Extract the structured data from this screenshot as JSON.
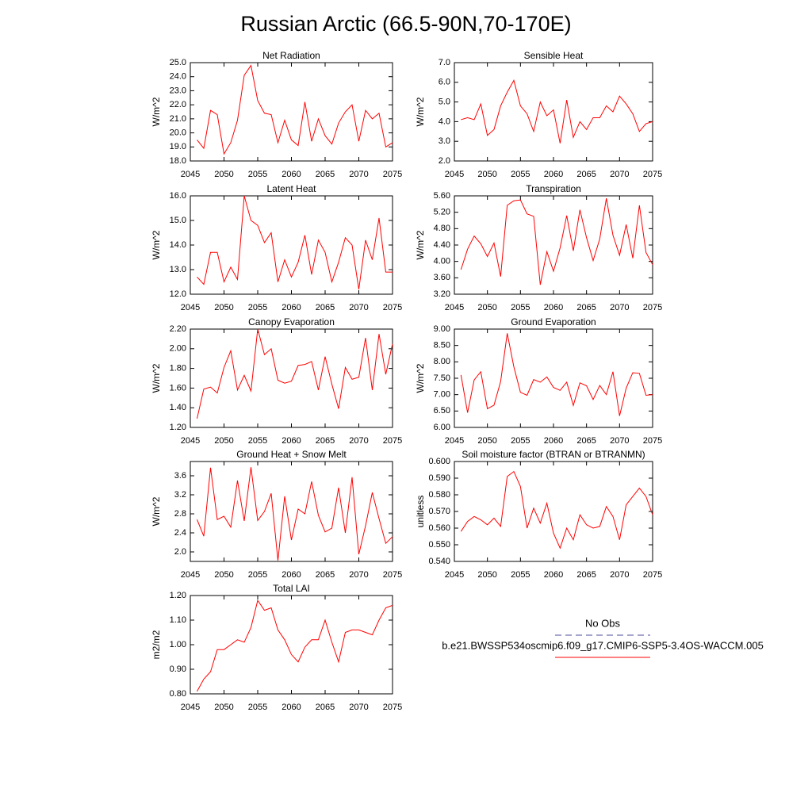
{
  "title": "Russian Arctic (66.5-90N,70-170E)",
  "legend": [
    {
      "name": "No Obs",
      "color": "#4b4b9b",
      "dash": true
    },
    {
      "name": "b.e21.BWSSP534oscmip6.f09_g17.CMIP6-SSP5-3.4OS-WACCM.005",
      "color": "#ff0000"
    }
  ],
  "chart_data": [
    {
      "type": "line",
      "title": "Net Radiation",
      "ylabel": "W/m^2",
      "color": "#ff0000",
      "x": [
        2046,
        2047,
        2048,
        2049,
        2050,
        2051,
        2052,
        2053,
        2054,
        2055,
        2056,
        2057,
        2058,
        2059,
        2060,
        2061,
        2062,
        2063,
        2064,
        2065,
        2066,
        2067,
        2068,
        2069,
        2070,
        2071,
        2072,
        2073,
        2074,
        2075
      ],
      "values": [
        19.5,
        18.9,
        21.6,
        21.3,
        18.5,
        19.3,
        20.9,
        24.1,
        24.8,
        22.3,
        21.4,
        21.3,
        19.3,
        20.9,
        19.5,
        19.1,
        22.2,
        19.4,
        21.0,
        19.8,
        19.2,
        20.7,
        21.5,
        22.0,
        19.4,
        21.6,
        21.0,
        21.4,
        19.0,
        19.3
      ],
      "xlim": [
        2045,
        2075
      ],
      "xticks": [
        2045,
        2050,
        2055,
        2060,
        2065,
        2070,
        2075
      ],
      "ylim": [
        18,
        25
      ],
      "yticks": [
        {
          "value": 18,
          "label": "18.0"
        },
        {
          "value": 19,
          "label": "19.0"
        },
        {
          "value": 20,
          "label": "20.0"
        },
        {
          "value": 21,
          "label": "21.0"
        },
        {
          "value": 22,
          "label": "22.0"
        },
        {
          "value": 23,
          "label": "23.0"
        },
        {
          "value": 24,
          "label": "24.0"
        },
        {
          "value": 25,
          "label": "25.0"
        }
      ]
    },
    {
      "type": "line",
      "title": "Sensible Heat",
      "ylabel": "W/m^2",
      "color": "#ff0000",
      "x": [
        2046,
        2047,
        2048,
        2049,
        2050,
        2051,
        2052,
        2053,
        2054,
        2055,
        2056,
        2057,
        2058,
        2059,
        2060,
        2061,
        2062,
        2063,
        2064,
        2065,
        2066,
        2067,
        2068,
        2069,
        2070,
        2071,
        2072,
        2073,
        2074,
        2075
      ],
      "values": [
        4.1,
        4.2,
        4.1,
        4.9,
        3.3,
        3.6,
        4.8,
        5.5,
        6.1,
        4.8,
        4.4,
        3.5,
        5.0,
        4.3,
        4.6,
        2.9,
        5.1,
        3.2,
        4.0,
        3.6,
        4.2,
        4.2,
        4.8,
        4.5,
        5.3,
        4.9,
        4.4,
        3.5,
        3.9,
        4.0
      ],
      "xlim": [
        2045,
        2075
      ],
      "xticks": [
        2045,
        2050,
        2055,
        2060,
        2065,
        2070,
        2075
      ],
      "ylim": [
        2,
        7
      ],
      "yticks": [
        {
          "value": 2,
          "label": "2.0"
        },
        {
          "value": 3,
          "label": "3.0"
        },
        {
          "value": 4,
          "label": "4.0"
        },
        {
          "value": 5,
          "label": "5.0"
        },
        {
          "value": 6,
          "label": "6.0"
        },
        {
          "value": 7,
          "label": "7.0"
        }
      ]
    },
    {
      "type": "line",
      "title": "Latent Heat",
      "ylabel": "W/m^2",
      "color": "#ff0000",
      "x": [
        2046,
        2047,
        2048,
        2049,
        2050,
        2051,
        2052,
        2053,
        2054,
        2055,
        2056,
        2057,
        2058,
        2059,
        2060,
        2061,
        2062,
        2063,
        2064,
        2065,
        2066,
        2067,
        2068,
        2069,
        2070,
        2071,
        2072,
        2073,
        2074,
        2075
      ],
      "values": [
        12.7,
        12.4,
        13.7,
        13.7,
        12.5,
        13.1,
        12.6,
        16.0,
        15.0,
        14.8,
        14.1,
        14.5,
        12.5,
        13.4,
        12.7,
        13.3,
        14.4,
        12.8,
        14.2,
        13.7,
        12.5,
        13.3,
        14.3,
        14.0,
        12.2,
        14.2,
        13.4,
        15.1,
        12.9,
        12.9
      ],
      "xlim": [
        2045,
        2075
      ],
      "xticks": [
        2045,
        2050,
        2055,
        2060,
        2065,
        2070,
        2075
      ],
      "ylim": [
        12,
        16
      ],
      "yticks": [
        {
          "value": 12,
          "label": "12.0"
        },
        {
          "value": 13,
          "label": "13.0"
        },
        {
          "value": 14,
          "label": "14.0"
        },
        {
          "value": 15,
          "label": "15.0"
        },
        {
          "value": 16,
          "label": "16.0"
        }
      ]
    },
    {
      "type": "line",
      "title": "Transpiration",
      "ylabel": "W/m^2",
      "color": "#ff0000",
      "x": [
        2046,
        2047,
        2048,
        2049,
        2050,
        2051,
        2052,
        2053,
        2054,
        2055,
        2056,
        2057,
        2058,
        2059,
        2060,
        2061,
        2062,
        2063,
        2064,
        2065,
        2066,
        2067,
        2068,
        2069,
        2070,
        2071,
        2072,
        2073,
        2074,
        2075
      ],
      "values": [
        3.8,
        4.3,
        4.62,
        4.43,
        4.12,
        4.45,
        3.63,
        5.37,
        5.48,
        5.5,
        5.16,
        5.1,
        3.43,
        4.24,
        3.76,
        4.33,
        5.12,
        4.26,
        5.26,
        4.58,
        4.02,
        4.55,
        5.54,
        4.64,
        4.15,
        4.9,
        4.08,
        5.37,
        4.22,
        3.92
      ],
      "xlim": [
        2045,
        2075
      ],
      "xticks": [
        2045,
        2050,
        2055,
        2060,
        2065,
        2070,
        2075
      ],
      "ylim": [
        3.2,
        5.6
      ],
      "yticks": [
        {
          "value": 3.2,
          "label": "3.20"
        },
        {
          "value": 3.6,
          "label": "3.60"
        },
        {
          "value": 4,
          "label": "4.00"
        },
        {
          "value": 4.4,
          "label": "4.40"
        },
        {
          "value": 4.8,
          "label": "4.80"
        },
        {
          "value": 5.2,
          "label": "5.20"
        },
        {
          "value": 5.6,
          "label": "5.60"
        }
      ]
    },
    {
      "type": "line",
      "title": "Canopy Evaporation",
      "ylabel": "W/m^2",
      "color": "#ff0000",
      "x": [
        2046,
        2047,
        2048,
        2049,
        2050,
        2051,
        2052,
        2053,
        2054,
        2055,
        2056,
        2057,
        2058,
        2059,
        2060,
        2061,
        2062,
        2063,
        2064,
        2065,
        2066,
        2067,
        2068,
        2069,
        2070,
        2071,
        2072,
        2073,
        2074,
        2075
      ],
      "values": [
        1.29,
        1.59,
        1.61,
        1.55,
        1.81,
        1.98,
        1.58,
        1.73,
        1.57,
        2.2,
        1.94,
        2.0,
        1.68,
        1.65,
        1.67,
        1.83,
        1.84,
        1.87,
        1.58,
        1.92,
        1.64,
        1.39,
        1.81,
        1.69,
        1.71,
        2.11,
        1.58,
        2.15,
        1.74,
        2.05
      ],
      "xlim": [
        2045,
        2075
      ],
      "xticks": [
        2045,
        2050,
        2055,
        2060,
        2065,
        2070,
        2075
      ],
      "ylim": [
        1.2,
        2.2
      ],
      "yticks": [
        {
          "value": 1.2,
          "label": "1.20"
        },
        {
          "value": 1.4,
          "label": "1.40"
        },
        {
          "value": 1.6,
          "label": "1.60"
        },
        {
          "value": 1.8,
          "label": "1.80"
        },
        {
          "value": 2,
          "label": "2.00"
        },
        {
          "value": 2.2,
          "label": "2.20"
        }
      ]
    },
    {
      "type": "line",
      "title": "Ground Evaporation",
      "ylabel": "W/m^2",
      "color": "#ff0000",
      "x": [
        2046,
        2047,
        2048,
        2049,
        2050,
        2051,
        2052,
        2053,
        2054,
        2055,
        2056,
        2057,
        2058,
        2059,
        2060,
        2061,
        2062,
        2063,
        2064,
        2065,
        2066,
        2067,
        2068,
        2069,
        2070,
        2071,
        2072,
        2073,
        2074,
        2075
      ],
      "values": [
        7.6,
        6.45,
        7.45,
        7.7,
        6.57,
        6.68,
        7.4,
        8.87,
        7.85,
        7.07,
        6.98,
        7.46,
        7.38,
        7.54,
        7.22,
        7.13,
        7.38,
        6.67,
        7.36,
        7.27,
        6.85,
        7.28,
        7.0,
        7.7,
        6.35,
        7.2,
        7.67,
        7.65,
        6.98,
        7.0
      ],
      "xlim": [
        2045,
        2075
      ],
      "xticks": [
        2045,
        2050,
        2055,
        2060,
        2065,
        2070,
        2075
      ],
      "ylim": [
        6,
        9
      ],
      "yticks": [
        {
          "value": 6,
          "label": "6.00"
        },
        {
          "value": 6.5,
          "label": "6.50"
        },
        {
          "value": 7,
          "label": "7.00"
        },
        {
          "value": 7.5,
          "label": "7.50"
        },
        {
          "value": 8,
          "label": "8.00"
        },
        {
          "value": 8.5,
          "label": "8.50"
        },
        {
          "value": 9,
          "label": "9.00"
        }
      ]
    },
    {
      "type": "line",
      "title": "Ground Heat + Snow Melt",
      "ylabel": "W/m^2",
      "color": "#ff0000",
      "x": [
        2046,
        2047,
        2048,
        2049,
        2050,
        2051,
        2052,
        2053,
        2054,
        2055,
        2056,
        2057,
        2058,
        2059,
        2060,
        2061,
        2062,
        2063,
        2064,
        2065,
        2066,
        2067,
        2068,
        2069,
        2070,
        2071,
        2072,
        2073,
        2074,
        2075
      ],
      "values": [
        2.68,
        2.33,
        3.77,
        2.68,
        2.75,
        2.52,
        3.5,
        2.65,
        3.78,
        2.66,
        2.85,
        3.23,
        1.82,
        3.17,
        2.25,
        2.9,
        2.8,
        3.48,
        2.77,
        2.42,
        2.5,
        3.35,
        2.4,
        3.57,
        1.95,
        2.55,
        3.25,
        2.7,
        2.18,
        2.32
      ],
      "xlim": [
        2045,
        2075
      ],
      "xticks": [
        2045,
        2050,
        2055,
        2060,
        2065,
        2070,
        2075
      ],
      "ylim": [
        1.8,
        3.9
      ],
      "yticks": [
        {
          "value": 2,
          "label": "2.0"
        },
        2.4,
        2.8,
        3.2,
        3.6
      ]
    },
    {
      "type": "line",
      "title": "Soil moisture factor (BTRAN or BTRANMN)",
      "ylabel": "unitless",
      "color": "#ff0000",
      "x": [
        2046,
        2047,
        2048,
        2049,
        2050,
        2051,
        2052,
        2053,
        2054,
        2055,
        2056,
        2057,
        2058,
        2059,
        2060,
        2061,
        2062,
        2063,
        2064,
        2065,
        2066,
        2067,
        2068,
        2069,
        2070,
        2071,
        2072,
        2073,
        2074,
        2075
      ],
      "values": [
        0.558,
        0.564,
        0.567,
        0.565,
        0.562,
        0.566,
        0.561,
        0.591,
        0.594,
        0.585,
        0.56,
        0.572,
        0.563,
        0.575,
        0.557,
        0.548,
        0.56,
        0.553,
        0.568,
        0.562,
        0.56,
        0.561,
        0.573,
        0.567,
        0.553,
        0.574,
        0.579,
        0.584,
        0.579,
        0.568
      ],
      "xlim": [
        2045,
        2075
      ],
      "xticks": [
        2045,
        2050,
        2055,
        2060,
        2065,
        2070,
        2075
      ],
      "ylim": [
        0.54,
        0.6
      ],
      "yticks": [
        {
          "value": 0.54,
          "label": "0.540"
        },
        {
          "value": 0.55,
          "label": "0.550"
        },
        {
          "value": 0.56,
          "label": "0.560"
        },
        {
          "value": 0.57,
          "label": "0.570"
        },
        {
          "value": 0.58,
          "label": "0.580"
        },
        {
          "value": 0.59,
          "label": "0.590"
        },
        {
          "value": 0.6,
          "label": "0.600"
        }
      ]
    },
    {
      "type": "line",
      "title": "Total LAI",
      "ylabel": "m2/m2",
      "color": "#ff0000",
      "x": [
        2046,
        2047,
        2048,
        2049,
        2050,
        2051,
        2052,
        2053,
        2054,
        2055,
        2056,
        2057,
        2058,
        2059,
        2060,
        2061,
        2062,
        2063,
        2064,
        2065,
        2066,
        2067,
        2068,
        2069,
        2070,
        2071,
        2072,
        2073,
        2074,
        2075
      ],
      "values": [
        0.81,
        0.86,
        0.89,
        0.98,
        0.98,
        1.0,
        1.02,
        1.01,
        1.07,
        1.18,
        1.14,
        1.15,
        1.06,
        1.02,
        0.96,
        0.93,
        0.99,
        1.02,
        1.02,
        1.1,
        1.01,
        0.93,
        1.05,
        1.06,
        1.06,
        1.05,
        1.04,
        1.1,
        1.15,
        1.16
      ],
      "xlim": [
        2045,
        2075
      ],
      "xticks": [
        2045,
        2050,
        2055,
        2060,
        2065,
        2070,
        2075
      ],
      "ylim": [
        0.8,
        1.2
      ],
      "yticks": [
        {
          "value": 0.8,
          "label": "0.80"
        },
        {
          "value": 0.9,
          "label": "0.90"
        },
        {
          "value": 1,
          "label": "1.00"
        },
        {
          "value": 1.1,
          "label": "1.10"
        },
        {
          "value": 1.2,
          "label": "1.20"
        }
      ]
    }
  ]
}
